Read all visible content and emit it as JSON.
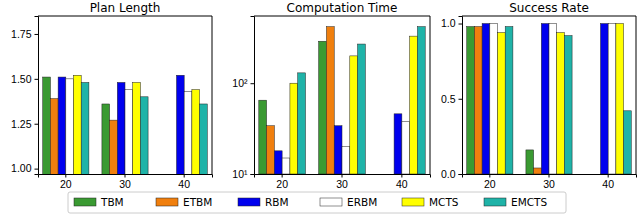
{
  "chart_data": [
    {
      "type": "bar",
      "title": "Plan Length",
      "categories": [
        "20",
        "30",
        "40"
      ],
      "legend": "bottom",
      "ylim": [
        0.97,
        1.85
      ],
      "yticks": [
        {
          "value": 1,
          "label": "1.00"
        },
        1.25,
        {
          "value": 1.5,
          "label": "1.50"
        },
        1.75
      ],
      "series": [
        {
          "name": "TBM",
          "color": "#3a9a32",
          "values": [
            1.51,
            1.36,
            null
          ]
        },
        {
          "name": "ETBM",
          "color": "#f07f0e",
          "values": [
            1.39,
            1.27,
            null
          ]
        },
        {
          "name": "RBM",
          "color": "#0000ee",
          "values": [
            1.51,
            1.48,
            1.52
          ]
        },
        {
          "name": "ERBM",
          "color": "#ffffff",
          "values": [
            1.5,
            1.44,
            1.43
          ]
        },
        {
          "name": "MCTS",
          "color": "#ffff00",
          "values": [
            1.52,
            1.48,
            1.44
          ]
        },
        {
          "name": "EMCTS",
          "color": "#1fb3a8",
          "values": [
            1.48,
            1.4,
            1.36
          ]
        }
      ]
    },
    {
      "type": "bar",
      "title": "Computation Time",
      "categories": [
        "20",
        "30",
        "40"
      ],
      "log": "y",
      "ylim": [
        10,
        550
      ],
      "yticks": [
        {
          "value": 10,
          "label": "10¹"
        },
        {
          "value": 100,
          "label": "10²"
        }
      ],
      "series": [
        {
          "color": "#3a9a32",
          "values": [
            65,
            290,
            null
          ]
        },
        {
          "color": "#f07f0e",
          "values": [
            34,
            420,
            null
          ]
        },
        {
          "color": "#0000ee",
          "values": [
            18,
            34,
            46
          ]
        },
        {
          "color": "#ffffff",
          "values": [
            15,
            20,
            38
          ]
        },
        {
          "color": "#ffff00",
          "values": [
            100,
            200,
            330
          ]
        },
        {
          "color": "#1fb3a8",
          "values": [
            130,
            270,
            420
          ]
        }
      ]
    },
    {
      "type": "bar",
      "title": "Success Rate",
      "categories": [
        "20",
        "30",
        "40"
      ],
      "ylim": [
        0,
        1.05
      ],
      "yticks": [
        {
          "value": 0,
          "label": "0.0"
        },
        0.5,
        {
          "value": 1,
          "label": "1.0"
        }
      ],
      "series": [
        {
          "color": "#3a9a32",
          "values": [
            0.98,
            0.16,
            0
          ]
        },
        {
          "color": "#f07f0e",
          "values": [
            0.98,
            0.04,
            0
          ]
        },
        {
          "color": "#0000ee",
          "values": [
            1,
            1,
            1
          ]
        },
        {
          "color": "#ffffff",
          "values": [
            1,
            1,
            1
          ]
        },
        {
          "color": "#ffff00",
          "values": [
            0.94,
            0.94,
            1
          ]
        },
        {
          "color": "#1fb3a8",
          "values": [
            0.98,
            0.92,
            0.42
          ]
        }
      ]
    }
  ]
}
